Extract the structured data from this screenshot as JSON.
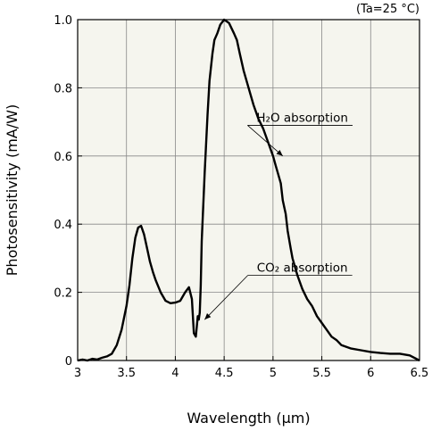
{
  "chart_data": {
    "type": "line",
    "title": "",
    "xlabel": "Wavelength (μm)",
    "ylabel": "Photosensitivity (mA/W)",
    "condition": "(Ta=25 °C)",
    "xlim": [
      3,
      6.5
    ],
    "ylim": [
      0,
      1.0
    ],
    "x_ticks": [
      3,
      3.5,
      4,
      4.5,
      5,
      5.5,
      6,
      6.5
    ],
    "x_tick_labels": [
      "3",
      "3.5",
      "4",
      "4.5",
      "5",
      "5.5",
      "6",
      "6.5"
    ],
    "y_ticks": [
      0,
      0.2,
      0.4,
      0.6,
      0.8,
      1.0
    ],
    "y_tick_labels": [
      "0",
      "0.2",
      "0.4",
      "0.6",
      "0.8",
      "1.0"
    ],
    "grid": true,
    "background_color": "#f5f5ee",
    "line_color": "#000000",
    "series": [
      {
        "x": [
          3.0,
          3.05,
          3.1,
          3.15,
          3.2,
          3.25,
          3.3,
          3.35,
          3.4,
          3.45,
          3.5,
          3.53,
          3.56,
          3.59,
          3.62,
          3.65,
          3.68,
          3.71,
          3.74,
          3.77,
          3.8,
          3.85,
          3.9,
          3.95,
          4.0,
          4.05,
          4.1,
          4.14,
          4.17,
          4.19,
          4.21,
          4.23,
          4.24,
          4.25,
          4.26,
          4.27,
          4.3,
          4.33,
          4.35,
          4.38,
          4.4,
          4.43,
          4.46,
          4.5,
          4.55,
          4.6,
          4.63,
          4.66,
          4.7,
          4.75,
          4.8,
          4.85,
          4.9,
          4.95,
          5.0,
          5.03,
          5.05,
          5.08,
          5.1,
          5.13,
          5.15,
          5.18,
          5.2,
          5.25,
          5.3,
          5.35,
          5.4,
          5.45,
          5.5,
          5.55,
          5.6,
          5.65,
          5.7,
          5.8,
          5.9,
          6.0,
          6.1,
          6.2,
          6.3,
          6.4,
          6.5
        ],
        "y": [
          0.0,
          0.003,
          0.0,
          0.005,
          0.003,
          0.008,
          0.012,
          0.02,
          0.045,
          0.09,
          0.16,
          0.22,
          0.3,
          0.36,
          0.39,
          0.395,
          0.37,
          0.33,
          0.29,
          0.26,
          0.235,
          0.2,
          0.175,
          0.168,
          0.17,
          0.175,
          0.2,
          0.215,
          0.18,
          0.08,
          0.07,
          0.13,
          0.12,
          0.14,
          0.22,
          0.35,
          0.55,
          0.72,
          0.82,
          0.9,
          0.94,
          0.96,
          0.985,
          1.0,
          0.99,
          0.96,
          0.94,
          0.9,
          0.85,
          0.8,
          0.75,
          0.71,
          0.68,
          0.64,
          0.6,
          0.57,
          0.55,
          0.52,
          0.47,
          0.43,
          0.38,
          0.33,
          0.3,
          0.25,
          0.21,
          0.18,
          0.16,
          0.13,
          0.11,
          0.09,
          0.07,
          0.06,
          0.045,
          0.035,
          0.03,
          0.025,
          0.022,
          0.02,
          0.02,
          0.015,
          0.0
        ]
      }
    ],
    "annotations": [
      {
        "text": "H₂O absorption",
        "x": 5.1,
        "y": 0.6,
        "label_x": 5.3,
        "label_y": 0.69
      },
      {
        "text": "CO₂ absorption",
        "x": 4.3,
        "y": 0.12,
        "label_x": 5.3,
        "label_y": 0.25
      }
    ]
  }
}
